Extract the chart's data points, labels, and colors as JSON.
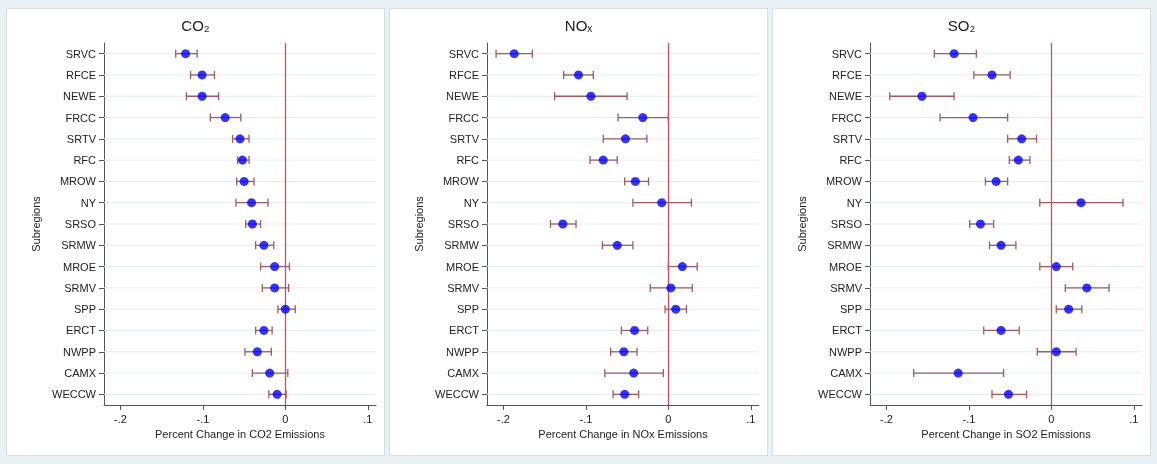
{
  "chart_data": [
    {
      "type": "scatter",
      "title": "CO₂",
      "xlabel": "Percent Change in CO2 Emissions",
      "ylabel": "Subregions",
      "orientation": "horizontal",
      "categories": [
        "SRVC",
        "RFCE",
        "NEWE",
        "FRCC",
        "SRTV",
        "RFC",
        "MROW",
        "NY",
        "SRSO",
        "SRMW",
        "MROE",
        "SRMV",
        "SPP",
        "ERCT",
        "NWPP",
        "CAMX",
        "WECCW"
      ],
      "series": [
        {
          "color": "#0000ff",
          "values": [
            -0.121,
            -0.101,
            -0.101,
            -0.073,
            -0.055,
            -0.052,
            -0.05,
            -0.041,
            -0.04,
            -0.026,
            -0.013,
            -0.013,
            0.0,
            -0.026,
            -0.034,
            -0.019,
            -0.01
          ],
          "errors": [
            [
              -0.133,
              -0.107
            ],
            [
              -0.115,
              -0.086
            ],
            [
              -0.12,
              -0.081
            ],
            [
              -0.091,
              -0.054
            ],
            [
              -0.064,
              -0.044
            ],
            [
              -0.058,
              -0.044
            ],
            [
              -0.059,
              -0.038
            ],
            [
              -0.06,
              -0.021
            ],
            [
              -0.048,
              -0.03
            ],
            [
              -0.036,
              -0.014
            ],
            [
              -0.03,
              0.005
            ],
            [
              -0.028,
              0.004
            ],
            [
              -0.009,
              0.012
            ],
            [
              -0.036,
              -0.016
            ],
            [
              -0.049,
              -0.017
            ],
            [
              -0.04,
              0.003
            ],
            [
              -0.02,
              0.001
            ]
          ]
        }
      ],
      "xlim": [
        -0.22,
        0.11
      ],
      "xticks": [
        {
          "value": -0.2,
          "label": "-.2"
        },
        {
          "value": -0.1,
          "label": "-.1"
        },
        {
          "value": 0,
          "label": "0"
        },
        {
          "value": 0.1,
          "label": ".1"
        }
      ],
      "ref_lines": [
        {
          "axis": "x",
          "value": 0,
          "color": "#c8505f"
        }
      ],
      "grid": "y",
      "marker": "circle"
    },
    {
      "type": "scatter",
      "title": "NOₓ",
      "xlabel": "Percent Change in NOx Emissions",
      "ylabel": "Subregions",
      "orientation": "horizontal",
      "categories": [
        "SRVC",
        "RFCE",
        "NEWE",
        "FRCC",
        "SRTV",
        "RFC",
        "MROW",
        "NY",
        "SRSO",
        "SRMW",
        "MROE",
        "SRMV",
        "SPP",
        "ERCT",
        "NWPP",
        "CAMX",
        "WECCW"
      ],
      "series": [
        {
          "color": "#0000ff",
          "values": [
            -0.187,
            -0.109,
            -0.094,
            -0.031,
            -0.052,
            -0.079,
            -0.04,
            -0.008,
            -0.128,
            -0.062,
            0.017,
            0.003,
            0.009,
            -0.041,
            -0.054,
            -0.042,
            -0.053
          ],
          "errors": [
            [
              -0.209,
              -0.165
            ],
            [
              -0.127,
              -0.091
            ],
            [
              -0.138,
              -0.05
            ],
            [
              -0.061,
              0.0
            ],
            [
              -0.079,
              -0.026
            ],
            [
              -0.095,
              -0.062
            ],
            [
              -0.053,
              -0.024
            ],
            [
              -0.043,
              0.028
            ],
            [
              -0.143,
              -0.112
            ],
            [
              -0.08,
              -0.043
            ],
            [
              0.0,
              0.035
            ],
            [
              -0.022,
              0.029
            ],
            [
              -0.004,
              0.022
            ],
            [
              -0.057,
              -0.025
            ],
            [
              -0.07,
              -0.038
            ],
            [
              -0.077,
              -0.006
            ],
            [
              -0.067,
              -0.036
            ]
          ]
        }
      ],
      "xlim": [
        -0.22,
        0.11
      ],
      "xticks": [
        {
          "value": -0.2,
          "label": "-.2"
        },
        {
          "value": -0.1,
          "label": "-.1"
        },
        {
          "value": 0,
          "label": "0"
        },
        {
          "value": 0.1,
          "label": ".1"
        }
      ],
      "ref_lines": [
        {
          "axis": "x",
          "value": 0,
          "color": "#c8505f"
        }
      ],
      "grid": "y",
      "marker": "circle"
    },
    {
      "type": "scatter",
      "title": "SO₂",
      "xlabel": "Percent Change in SO2 Emissions",
      "ylabel": "Subregions",
      "orientation": "horizontal",
      "categories": [
        "SRVC",
        "RFCE",
        "NEWE",
        "FRCC",
        "SRTV",
        "RFC",
        "MROW",
        "NY",
        "SRSO",
        "SRMW",
        "MROE",
        "SRMV",
        "SPP",
        "ERCT",
        "NWPP",
        "CAMX",
        "WECCW"
      ],
      "series": [
        {
          "color": "#0000ff",
          "values": [
            -0.118,
            -0.072,
            -0.157,
            -0.095,
            -0.036,
            -0.04,
            -0.067,
            0.036,
            -0.086,
            -0.061,
            0.006,
            0.043,
            0.021,
            -0.061,
            0.006,
            -0.113,
            -0.052
          ],
          "errors": [
            [
              -0.142,
              -0.091
            ],
            [
              -0.094,
              -0.05
            ],
            [
              -0.196,
              -0.118
            ],
            [
              -0.135,
              -0.053
            ],
            [
              -0.053,
              -0.018
            ],
            [
              -0.051,
              -0.026
            ],
            [
              -0.08,
              -0.053
            ],
            [
              -0.014,
              0.087
            ],
            [
              -0.099,
              -0.07
            ],
            [
              -0.075,
              -0.043
            ],
            [
              -0.014,
              0.026
            ],
            [
              0.017,
              0.07
            ],
            [
              0.006,
              0.037
            ],
            [
              -0.082,
              -0.039
            ],
            [
              -0.017,
              0.03
            ],
            [
              -0.167,
              -0.058
            ],
            [
              -0.072,
              -0.03
            ]
          ]
        }
      ],
      "xlim": [
        -0.22,
        0.11
      ],
      "xticks": [
        {
          "value": -0.2,
          "label": "-.2"
        },
        {
          "value": -0.1,
          "label": "-.1"
        },
        {
          "value": 0,
          "label": "0"
        },
        {
          "value": 0.1,
          "label": ".1"
        }
      ],
      "ref_lines": [
        {
          "axis": "x",
          "value": 0,
          "color": "#c8505f"
        }
      ],
      "grid": "y",
      "marker": "circle"
    }
  ]
}
